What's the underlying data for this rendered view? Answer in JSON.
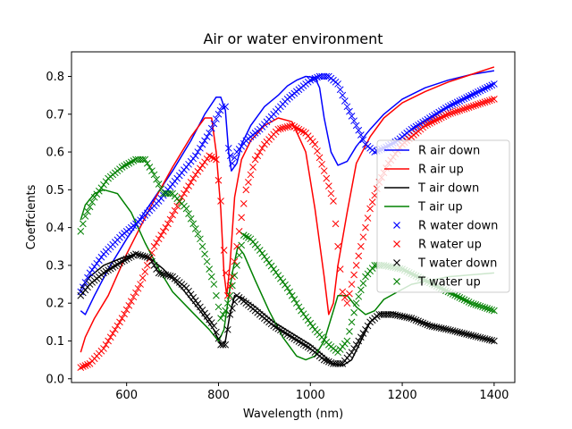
{
  "chart_data": {
    "type": "line",
    "title": "Air or water environment",
    "xlabel": "Wavelength (nm)",
    "ylabel": "Coeffcients",
    "xlim": [
      480,
      1445
    ],
    "ylim": [
      -0.01,
      0.865
    ],
    "xticks": [
      600,
      800,
      1000,
      1200,
      1400
    ],
    "yticks": [
      0.0,
      0.1,
      0.2,
      0.3,
      0.4,
      0.5,
      0.6,
      0.7,
      0.8
    ],
    "grid": false,
    "legend_position": "right",
    "series": [
      {
        "name": "R air down",
        "style": "line",
        "color": "#0000ff",
        "points": [
          [
            500,
            0.18
          ],
          [
            510,
            0.17
          ],
          [
            530,
            0.22
          ],
          [
            560,
            0.29
          ],
          [
            600,
            0.37
          ],
          [
            650,
            0.46
          ],
          [
            700,
            0.55
          ],
          [
            740,
            0.63
          ],
          [
            770,
            0.7
          ],
          [
            795,
            0.745
          ],
          [
            805,
            0.745
          ],
          [
            815,
            0.71
          ],
          [
            822,
            0.6
          ],
          [
            828,
            0.55
          ],
          [
            840,
            0.57
          ],
          [
            850,
            0.62
          ],
          [
            870,
            0.67
          ],
          [
            900,
            0.72
          ],
          [
            930,
            0.75
          ],
          [
            950,
            0.775
          ],
          [
            970,
            0.79
          ],
          [
            990,
            0.8
          ],
          [
            1010,
            0.797
          ],
          [
            1020,
            0.77
          ],
          [
            1030,
            0.69
          ],
          [
            1045,
            0.6
          ],
          [
            1060,
            0.565
          ],
          [
            1080,
            0.575
          ],
          [
            1100,
            0.615
          ],
          [
            1130,
            0.66
          ],
          [
            1160,
            0.7
          ],
          [
            1200,
            0.74
          ],
          [
            1250,
            0.77
          ],
          [
            1300,
            0.79
          ],
          [
            1350,
            0.805
          ],
          [
            1400,
            0.815
          ]
        ]
      },
      {
        "name": "R air up",
        "style": "line",
        "color": "#ff0000",
        "points": [
          [
            500,
            0.07
          ],
          [
            510,
            0.11
          ],
          [
            530,
            0.16
          ],
          [
            560,
            0.22
          ],
          [
            600,
            0.33
          ],
          [
            650,
            0.45
          ],
          [
            700,
            0.56
          ],
          [
            740,
            0.64
          ],
          [
            770,
            0.69
          ],
          [
            785,
            0.69
          ],
          [
            795,
            0.6
          ],
          [
            805,
            0.45
          ],
          [
            812,
            0.28
          ],
          [
            818,
            0.22
          ],
          [
            825,
            0.3
          ],
          [
            835,
            0.48
          ],
          [
            850,
            0.58
          ],
          [
            870,
            0.63
          ],
          [
            900,
            0.67
          ],
          [
            930,
            0.69
          ],
          [
            960,
            0.68
          ],
          [
            990,
            0.6
          ],
          [
            1010,
            0.45
          ],
          [
            1030,
            0.27
          ],
          [
            1040,
            0.17
          ],
          [
            1050,
            0.2
          ],
          [
            1060,
            0.3
          ],
          [
            1080,
            0.44
          ],
          [
            1100,
            0.57
          ],
          [
            1130,
            0.64
          ],
          [
            1160,
            0.69
          ],
          [
            1200,
            0.73
          ],
          [
            1250,
            0.76
          ],
          [
            1300,
            0.785
          ],
          [
            1350,
            0.805
          ],
          [
            1400,
            0.825
          ]
        ]
      },
      {
        "name": "T air down",
        "style": "line",
        "color": "#000000",
        "points": [
          [
            500,
            0.24
          ],
          [
            520,
            0.27
          ],
          [
            550,
            0.3
          ],
          [
            590,
            0.32
          ],
          [
            620,
            0.33
          ],
          [
            650,
            0.32
          ],
          [
            680,
            0.29
          ],
          [
            720,
            0.24
          ],
          [
            760,
            0.18
          ],
          [
            790,
            0.13
          ],
          [
            805,
            0.09
          ],
          [
            815,
            0.1
          ],
          [
            825,
            0.17
          ],
          [
            835,
            0.22
          ],
          [
            850,
            0.215
          ],
          [
            880,
            0.19
          ],
          [
            920,
            0.15
          ],
          [
            960,
            0.12
          ],
          [
            1000,
            0.09
          ],
          [
            1030,
            0.06
          ],
          [
            1050,
            0.04
          ],
          [
            1070,
            0.035
          ],
          [
            1090,
            0.05
          ],
          [
            1110,
            0.1
          ],
          [
            1130,
            0.15
          ],
          [
            1150,
            0.172
          ],
          [
            1180,
            0.175
          ],
          [
            1220,
            0.16
          ],
          [
            1260,
            0.145
          ],
          [
            1300,
            0.13
          ],
          [
            1350,
            0.115
          ],
          [
            1400,
            0.1
          ]
        ]
      },
      {
        "name": "T air up",
        "style": "line",
        "color": "#008000",
        "points": [
          [
            500,
            0.42
          ],
          [
            510,
            0.46
          ],
          [
            530,
            0.49
          ],
          [
            550,
            0.5
          ],
          [
            580,
            0.49
          ],
          [
            610,
            0.44
          ],
          [
            640,
            0.36
          ],
          [
            670,
            0.29
          ],
          [
            700,
            0.23
          ],
          [
            740,
            0.18
          ],
          [
            780,
            0.13
          ],
          [
            800,
            0.1
          ],
          [
            812,
            0.13
          ],
          [
            820,
            0.2
          ],
          [
            830,
            0.28
          ],
          [
            842,
            0.35
          ],
          [
            855,
            0.33
          ],
          [
            880,
            0.26
          ],
          [
            910,
            0.18
          ],
          [
            940,
            0.11
          ],
          [
            970,
            0.06
          ],
          [
            990,
            0.05
          ],
          [
            1010,
            0.06
          ],
          [
            1030,
            0.1
          ],
          [
            1050,
            0.18
          ],
          [
            1060,
            0.22
          ],
          [
            1080,
            0.22
          ],
          [
            1100,
            0.19
          ],
          [
            1120,
            0.17
          ],
          [
            1140,
            0.18
          ],
          [
            1160,
            0.21
          ],
          [
            1190,
            0.23
          ],
          [
            1220,
            0.25
          ],
          [
            1260,
            0.26
          ],
          [
            1300,
            0.27
          ],
          [
            1350,
            0.275
          ],
          [
            1400,
            0.28
          ]
        ]
      },
      {
        "name": "R water down",
        "style": "x",
        "color": "#0000ff",
        "points": [
          [
            500,
            0.23
          ],
          [
            520,
            0.28
          ],
          [
            550,
            0.33
          ],
          [
            590,
            0.38
          ],
          [
            630,
            0.42
          ],
          [
            670,
            0.47
          ],
          [
            710,
            0.53
          ],
          [
            750,
            0.59
          ],
          [
            780,
            0.65
          ],
          [
            800,
            0.7
          ],
          [
            808,
            0.72
          ],
          [
            815,
            0.72
          ],
          [
            822,
            0.61
          ],
          [
            830,
            0.57
          ],
          [
            840,
            0.6
          ],
          [
            860,
            0.63
          ],
          [
            890,
            0.66
          ],
          [
            920,
            0.7
          ],
          [
            950,
            0.74
          ],
          [
            980,
            0.77
          ],
          [
            1000,
            0.79
          ],
          [
            1020,
            0.8
          ],
          [
            1040,
            0.8
          ],
          [
            1060,
            0.78
          ],
          [
            1080,
            0.72
          ],
          [
            1100,
            0.67
          ],
          [
            1120,
            0.62
          ],
          [
            1140,
            0.6
          ],
          [
            1160,
            0.61
          ],
          [
            1190,
            0.63
          ],
          [
            1220,
            0.66
          ],
          [
            1260,
            0.69
          ],
          [
            1300,
            0.72
          ],
          [
            1350,
            0.75
          ],
          [
            1400,
            0.78
          ]
        ]
      },
      {
        "name": "R water up",
        "style": "x",
        "color": "#ff0000",
        "points": [
          [
            500,
            0.03
          ],
          [
            520,
            0.04
          ],
          [
            550,
            0.08
          ],
          [
            590,
            0.16
          ],
          [
            630,
            0.25
          ],
          [
            660,
            0.35
          ],
          [
            690,
            0.41
          ],
          [
            720,
            0.48
          ],
          [
            750,
            0.54
          ],
          [
            780,
            0.59
          ],
          [
            795,
            0.58
          ],
          [
            805,
            0.47
          ],
          [
            812,
            0.34
          ],
          [
            820,
            0.22
          ],
          [
            830,
            0.27
          ],
          [
            845,
            0.39
          ],
          [
            860,
            0.5
          ],
          [
            880,
            0.58
          ],
          [
            900,
            0.62
          ],
          [
            930,
            0.66
          ],
          [
            960,
            0.67
          ],
          [
            990,
            0.65
          ],
          [
            1010,
            0.62
          ],
          [
            1030,
            0.55
          ],
          [
            1050,
            0.47
          ],
          [
            1060,
            0.35
          ],
          [
            1070,
            0.23
          ],
          [
            1080,
            0.2
          ],
          [
            1090,
            0.25
          ],
          [
            1110,
            0.35
          ],
          [
            1130,
            0.45
          ],
          [
            1150,
            0.52
          ],
          [
            1170,
            0.57
          ],
          [
            1200,
            0.62
          ],
          [
            1250,
            0.67
          ],
          [
            1300,
            0.7
          ],
          [
            1350,
            0.72
          ],
          [
            1400,
            0.74
          ]
        ]
      },
      {
        "name": "T water down",
        "style": "x",
        "color": "#000000",
        "points": [
          [
            500,
            0.22
          ],
          [
            520,
            0.25
          ],
          [
            550,
            0.28
          ],
          [
            590,
            0.31
          ],
          [
            620,
            0.33
          ],
          [
            650,
            0.32
          ],
          [
            670,
            0.28
          ],
          [
            700,
            0.27
          ],
          [
            730,
            0.24
          ],
          [
            760,
            0.19
          ],
          [
            790,
            0.14
          ],
          [
            805,
            0.09
          ],
          [
            815,
            0.09
          ],
          [
            825,
            0.17
          ],
          [
            840,
            0.22
          ],
          [
            860,
            0.2
          ],
          [
            890,
            0.17
          ],
          [
            920,
            0.14
          ],
          [
            960,
            0.11
          ],
          [
            1000,
            0.08
          ],
          [
            1030,
            0.05
          ],
          [
            1050,
            0.04
          ],
          [
            1070,
            0.04
          ],
          [
            1090,
            0.07
          ],
          [
            1110,
            0.11
          ],
          [
            1130,
            0.15
          ],
          [
            1150,
            0.17
          ],
          [
            1180,
            0.17
          ],
          [
            1220,
            0.16
          ],
          [
            1260,
            0.14
          ],
          [
            1300,
            0.13
          ],
          [
            1350,
            0.115
          ],
          [
            1400,
            0.1
          ]
        ]
      },
      {
        "name": "T water up",
        "style": "x",
        "color": "#008000",
        "points": [
          [
            500,
            0.39
          ],
          [
            510,
            0.43
          ],
          [
            530,
            0.48
          ],
          [
            560,
            0.53
          ],
          [
            590,
            0.56
          ],
          [
            620,
            0.58
          ],
          [
            640,
            0.58
          ],
          [
            660,
            0.54
          ],
          [
            680,
            0.49
          ],
          [
            700,
            0.49
          ],
          [
            730,
            0.45
          ],
          [
            760,
            0.37
          ],
          [
            790,
            0.25
          ],
          [
            805,
            0.16
          ],
          [
            815,
            0.18
          ],
          [
            825,
            0.22
          ],
          [
            840,
            0.3
          ],
          [
            855,
            0.38
          ],
          [
            870,
            0.37
          ],
          [
            890,
            0.34
          ],
          [
            920,
            0.29
          ],
          [
            950,
            0.24
          ],
          [
            980,
            0.18
          ],
          [
            1010,
            0.13
          ],
          [
            1040,
            0.09
          ],
          [
            1060,
            0.07
          ],
          [
            1080,
            0.1
          ],
          [
            1100,
            0.2
          ],
          [
            1120,
            0.27
          ],
          [
            1140,
            0.3
          ],
          [
            1160,
            0.3
          ],
          [
            1200,
            0.29
          ],
          [
            1250,
            0.26
          ],
          [
            1300,
            0.23
          ],
          [
            1350,
            0.2
          ],
          [
            1400,
            0.18
          ]
        ]
      }
    ]
  }
}
